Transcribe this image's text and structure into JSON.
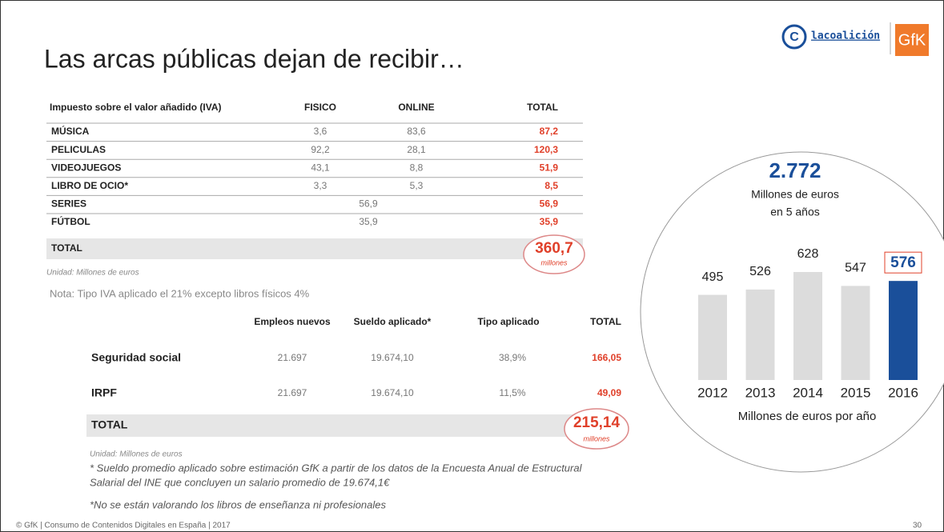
{
  "header": {
    "title": "Las arcas públicas dejan de recibir…",
    "logo_text": "lacoalición",
    "brand": "GfK"
  },
  "table1": {
    "columns": [
      "Impuesto sobre el valor añadido (IVA)",
      "FISICO",
      "ONLINE",
      "TOTAL"
    ],
    "rows": [
      [
        "MÚSICA",
        "3,6",
        "83,6",
        "87,2"
      ],
      [
        "PELICULAS",
        "92,2",
        "28,1",
        "120,3"
      ],
      [
        "VIDEOJUEGOS",
        "43,1",
        "8,8",
        "51,9"
      ],
      [
        "LIBRO DE OCIO*",
        "3,3",
        "5,3",
        "8,5"
      ],
      [
        "SERIES",
        "56,9",
        "56,9"
      ],
      [
        "FÚTBOL",
        "35,9",
        "35,9"
      ]
    ],
    "total": {
      "label": "TOTAL",
      "value": "360,7",
      "unit": "millones"
    },
    "unit": "Unidad: Millones de euros",
    "note": "Nota: Tipo IVA aplicado el 21% excepto libros físicos 4%"
  },
  "table2": {
    "columns": [
      "Empleos nuevos",
      "Sueldo aplicado*",
      "Tipo aplicado",
      "TOTAL"
    ],
    "rows": [
      [
        "Seguridad social",
        "21.697",
        "19.674,10",
        "38,9%",
        "166,05"
      ],
      [
        "IRPF",
        "21.697",
        "19.674,10",
        "11,5%",
        "49,09"
      ]
    ],
    "total": {
      "label": "TOTAL",
      "value": "215,14",
      "unit": "millones"
    },
    "unit": "Unidad: Millones de euros"
  },
  "footnotes": [
    "* Sueldo promedio aplicado sobre estimación GfK a partir de los datos de la Encuesta Anual de Estructural",
    "Salarial del INE que concluyen un salario promedio de 19.674,1€",
    "*No se están valorando los libros de enseñanza ni profesionales"
  ],
  "footer": {
    "text": "© GfK | Consumo de Contenidos Digitales en España | 2017",
    "page": "30"
  },
  "chart_data": {
    "type": "bar",
    "title": "2.772",
    "subtitle": [
      "Millones de euros",
      "en 5 años"
    ],
    "x_label": "Millones de euros por año",
    "categories": [
      "2012",
      "2013",
      "2014",
      "2015",
      "2016"
    ],
    "values": [
      495,
      526,
      628,
      547,
      576
    ],
    "colors": [
      "#dcdcdc",
      "#dcdcdc",
      "#dcdcdc",
      "#dcdcdc",
      "#1a4f9a"
    ],
    "highlight": 4
  }
}
